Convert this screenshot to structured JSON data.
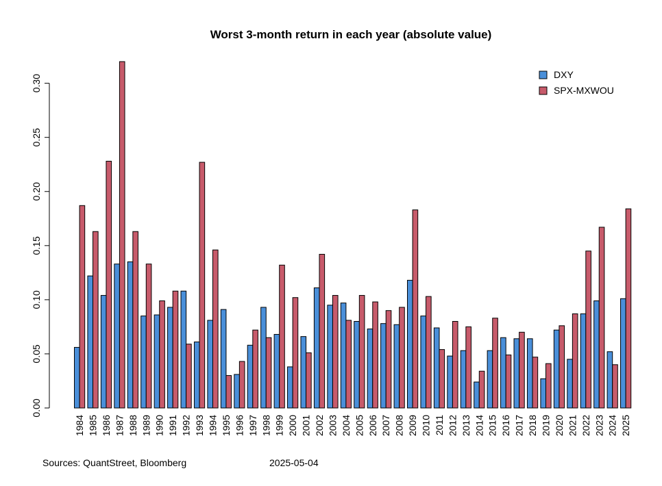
{
  "chart_data": {
    "type": "bar",
    "title": "Worst 3-month return in each year (absolute value)",
    "xlabel": "",
    "ylabel": "",
    "ylim": [
      0,
      0.32
    ],
    "yticks": [
      "0.00",
      "0.05",
      "0.10",
      "0.15",
      "0.20",
      "0.25",
      "0.30"
    ],
    "ytick_values": [
      0,
      0.05,
      0.1,
      0.15,
      0.2,
      0.25,
      0.3
    ],
    "categories": [
      "1984",
      "1985",
      "1986",
      "1987",
      "1988",
      "1989",
      "1990",
      "1991",
      "1992",
      "1993",
      "1994",
      "1995",
      "1996",
      "1997",
      "1998",
      "1999",
      "2000",
      "2001",
      "2002",
      "2003",
      "2004",
      "2005",
      "2006",
      "2007",
      "2008",
      "2009",
      "2010",
      "2011",
      "2012",
      "2013",
      "2014",
      "2015",
      "2016",
      "2017",
      "2018",
      "2019",
      "2020",
      "2021",
      "2022",
      "2023",
      "2024",
      "2025"
    ],
    "series": [
      {
        "name": "DXY",
        "color": "#4a8fd9",
        "values": [
          0.056,
          0.122,
          0.104,
          0.133,
          0.135,
          0.085,
          0.086,
          0.093,
          0.108,
          0.061,
          0.081,
          0.091,
          0.031,
          0.058,
          0.093,
          0.068,
          0.038,
          0.066,
          0.111,
          0.095,
          0.097,
          0.08,
          0.073,
          0.078,
          0.077,
          0.118,
          0.085,
          0.074,
          0.048,
          0.053,
          0.024,
          0.053,
          0.065,
          0.064,
          0.064,
          0.027,
          0.072,
          0.045,
          0.087,
          0.099,
          0.052,
          0.101
        ]
      },
      {
        "name": "SPX-MXWOU",
        "color": "#c75b6b",
        "values": [
          0.187,
          0.163,
          0.228,
          0.32,
          0.163,
          0.133,
          0.099,
          0.108,
          0.059,
          0.227,
          0.146,
          0.03,
          0.043,
          0.072,
          0.065,
          0.132,
          0.102,
          0.051,
          0.142,
          0.104,
          0.081,
          0.104,
          0.098,
          0.09,
          0.093,
          0.183,
          0.103,
          0.054,
          0.08,
          0.075,
          0.034,
          0.083,
          0.049,
          0.07,
          0.047,
          0.041,
          0.076,
          0.087,
          0.145,
          0.167,
          0.04,
          0.184
        ]
      }
    ],
    "legend_position": "top-right",
    "grid": false
  },
  "footer": {
    "sources": "Sources: QuantStreet, Bloomberg",
    "date": "2025-05-04"
  }
}
